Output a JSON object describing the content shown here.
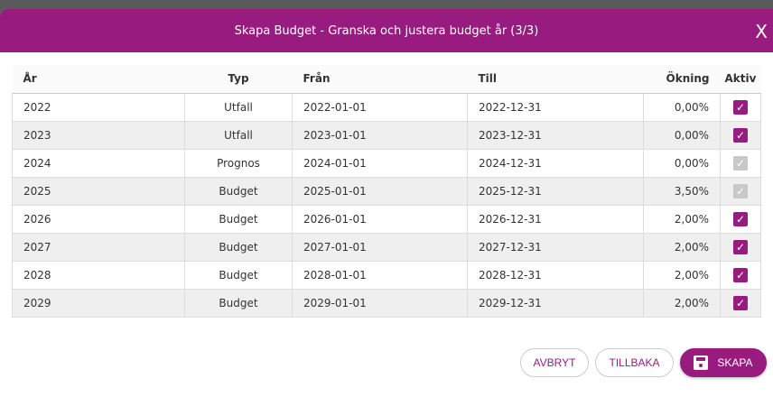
{
  "dialog": {
    "title": "Skapa Budget - Granska och justera budget år (3/3)",
    "close": "X"
  },
  "columns": [
    "År",
    "Typ",
    "Från",
    "Till",
    "Ökning",
    "Aktiv"
  ],
  "rows": [
    {
      "year": "2022",
      "type": "Utfall",
      "from": "2022-01-01",
      "to": "2022-12-31",
      "increase": "0,00%",
      "active": true,
      "disabled": false
    },
    {
      "year": "2023",
      "type": "Utfall",
      "from": "2023-01-01",
      "to": "2023-12-31",
      "increase": "0,00%",
      "active": true,
      "disabled": false
    },
    {
      "year": "2024",
      "type": "Prognos",
      "from": "2024-01-01",
      "to": "2024-12-31",
      "increase": "0,00%",
      "active": true,
      "disabled": true
    },
    {
      "year": "2025",
      "type": "Budget",
      "from": "2025-01-01",
      "to": "2025-12-31",
      "increase": "3,50%",
      "active": true,
      "disabled": true
    },
    {
      "year": "2026",
      "type": "Budget",
      "from": "2026-01-01",
      "to": "2026-12-31",
      "increase": "2,00%",
      "active": true,
      "disabled": false
    },
    {
      "year": "2027",
      "type": "Budget",
      "from": "2027-01-01",
      "to": "2027-12-31",
      "increase": "2,00%",
      "active": true,
      "disabled": false
    },
    {
      "year": "2028",
      "type": "Budget",
      "from": "2028-01-01",
      "to": "2028-12-31",
      "increase": "2,00%",
      "active": true,
      "disabled": false
    },
    {
      "year": "2029",
      "type": "Budget",
      "from": "2029-01-01",
      "to": "2029-12-31",
      "increase": "2,00%",
      "active": true,
      "disabled": false
    }
  ],
  "buttons": {
    "cancel": "AVBRYT",
    "back": "TILLBAKA",
    "create": "SKAPA"
  },
  "colors": {
    "accent": "#981b7f"
  }
}
